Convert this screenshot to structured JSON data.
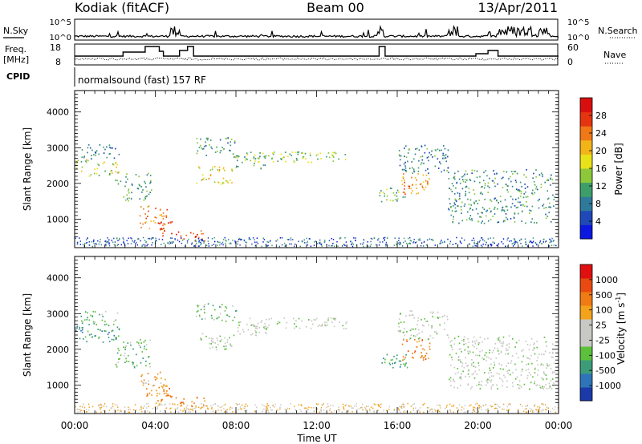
{
  "header": {
    "station": "Kodiak (fitACF)",
    "beam": "Beam 00",
    "date": "13/Apr/2011"
  },
  "panels": {
    "nsky": {
      "label": "N.Sky",
      "right_label": "N.Search",
      "ticks": [
        "10^5",
        "10^0"
      ]
    },
    "freq": {
      "label": "Freq.",
      "unit": "[MHz]",
      "right_label": "Nave",
      "left_ticks": [
        "18",
        "8"
      ],
      "right_ticks": [
        "60",
        "0"
      ]
    },
    "cpid": {
      "label": "CPID",
      "mode": "normalsound (fast) 157 RF"
    }
  },
  "chart_data": [
    {
      "type": "heatmap",
      "quantity": "Power",
      "ylabel": "Slant Range [km]",
      "ylim": [
        200,
        4600
      ],
      "yticks": [
        "4000",
        "3000",
        "2000",
        "1000"
      ],
      "colorbar": {
        "label": "Power [dB]",
        "ticks": [
          "28",
          "24",
          "20",
          "16",
          "12",
          "8",
          "4"
        ],
        "colors": [
          "#0b18e0",
          "#1f48b8",
          "#2f7a9a",
          "#3d9e6a",
          "#8cc83a",
          "#e9e21a",
          "#f2b418",
          "#f07816",
          "#e53410",
          "#d90f0f"
        ]
      }
    },
    {
      "type": "heatmap",
      "quantity": "Velocity",
      "ylabel": "Slant Range [km]",
      "ylim": [
        200,
        4600
      ],
      "yticks": [
        "4000",
        "3000",
        "2000",
        "1000"
      ],
      "xlabel": "Time UT",
      "xticks": [
        "00:00",
        "04:00",
        "08:00",
        "12:00",
        "16:00",
        "20:00",
        "00:00"
      ],
      "colorbar": {
        "label": "Velocity [m s",
        "label_sup": "-1",
        "label_end": "]",
        "ticks": [
          "1000",
          "500",
          "100",
          "25",
          "-25",
          "-100",
          "-500",
          "-1000"
        ],
        "colors": [
          "#1b3aa8",
          "#2f74b8",
          "#3c9c7a",
          "#5cc03c",
          "#c8c8c4",
          "#c8c8c4",
          "#f3a21c",
          "#f07a14",
          "#e84a10",
          "#e01010"
        ]
      }
    }
  ]
}
